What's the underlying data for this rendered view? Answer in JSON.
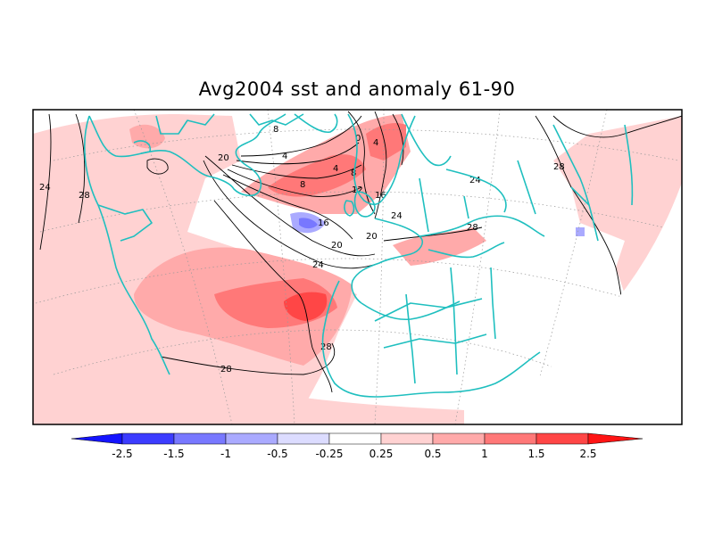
{
  "title": "Avg2004 sst and anomaly 61-90",
  "colors": {
    "deep_blue": "#1414ff",
    "blue": "#3c3cff",
    "mid_blue": "#7878ff",
    "light_blue": "#aaaaff",
    "pale_blue": "#dcdcff",
    "white": "#ffffff",
    "pale_red": "#ffd2d2",
    "light_red": "#ffaaaa",
    "mid_red": "#ff7878",
    "red": "#ff4646",
    "deep_red": "#ff1414",
    "coast": "#1fbfbf",
    "contour": "#000000"
  },
  "contour_labels": [
    "24",
    "28",
    "20",
    "8",
    "4",
    "0",
    "4",
    "4",
    "8",
    "8",
    "12",
    "16",
    "16",
    "20",
    "20",
    "24",
    "24",
    "28",
    "28",
    "28",
    "24",
    "28"
  ],
  "colorbar": {
    "labels": [
      "-2.5",
      "-1.5",
      "-1",
      "-0.5",
      "-0.25",
      "0.25",
      "0.5",
      "1",
      "1.5",
      "2.5"
    ]
  }
}
